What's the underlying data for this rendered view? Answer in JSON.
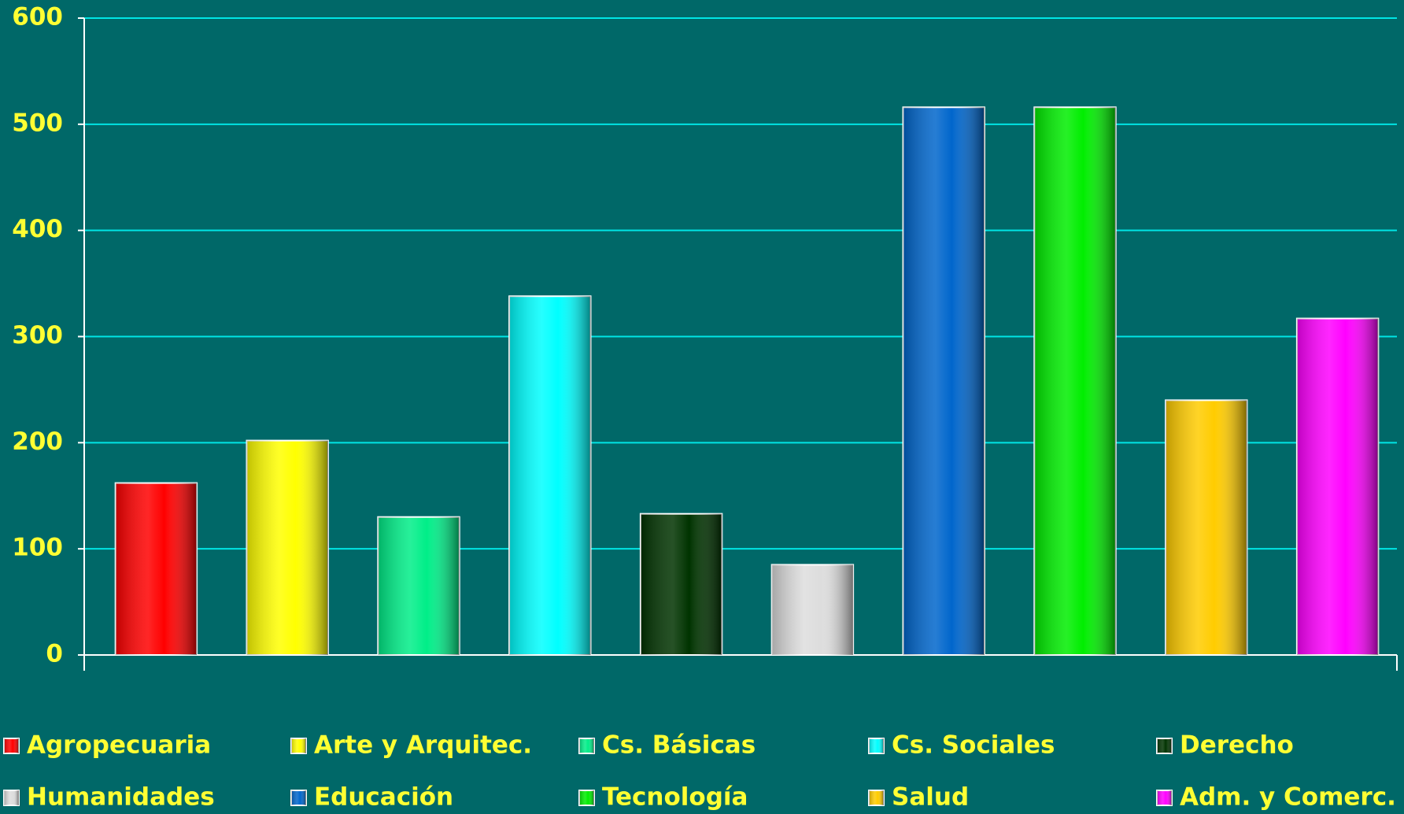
{
  "chart_data": {
    "type": "bar",
    "categories": [
      "Agropecuaria",
      "Arte y Arquitec.",
      "Cs. Básicas",
      "Cs. Sociales",
      "Derecho",
      "Humanidades",
      "Educación",
      "Tecnología",
      "Salud",
      "Adm. y Comerc."
    ],
    "values": [
      162,
      202,
      130,
      338,
      133,
      85,
      516,
      516,
      240,
      317
    ],
    "colors": [
      "#ff0000",
      "#ffff00",
      "#00ee88",
      "#00ffff",
      "#003300",
      "#dddddd",
      "#0066cc",
      "#00ee00",
      "#ffcc00",
      "#ff00ff"
    ],
    "ylim": [
      0,
      600
    ],
    "yticks": [
      0,
      100,
      200,
      300,
      400,
      500,
      600
    ],
    "grid": true,
    "legend": "bottom"
  }
}
